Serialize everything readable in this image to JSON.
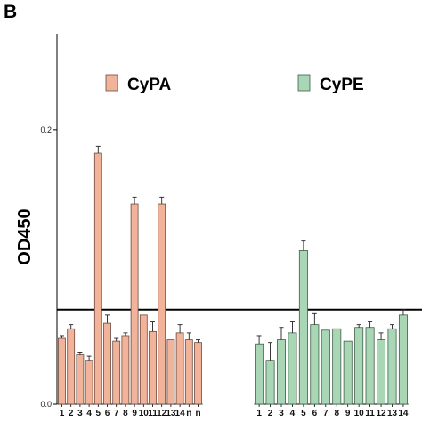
{
  "panel_letter": "B",
  "chart_data": {
    "type": "bar",
    "ylabel": "OD450",
    "ylim": [
      0,
      0.27
    ],
    "yticks": [
      0.0,
      0.2
    ],
    "ytick_labels": [
      "0.0",
      "0.2"
    ],
    "reference_line": 0.069,
    "legend_position": "top",
    "series": [
      {
        "name": "CyPA",
        "color": "#f2b39b",
        "stroke": "#6b4a3f",
        "categories": [
          "1",
          "2",
          "3",
          "4",
          "5",
          "6",
          "7",
          "8",
          "9",
          "10",
          "11",
          "12",
          "13",
          "14",
          "n",
          "n"
        ],
        "values": [
          0.048,
          0.055,
          0.036,
          0.032,
          0.183,
          0.059,
          0.046,
          0.05,
          0.146,
          0.065,
          0.053,
          0.146,
          0.047,
          0.052,
          0.047,
          0.045
        ],
        "errors": [
          0.002,
          0.003,
          0.002,
          0.003,
          0.005,
          0.006,
          0.002,
          0.002,
          0.005,
          0.0,
          0.007,
          0.005,
          0.0,
          0.006,
          0.005,
          0.002
        ]
      },
      {
        "name": "CyPE",
        "color": "#a9d7b5",
        "stroke": "#3f5f48",
        "categories": [
          "1",
          "2",
          "3",
          "4",
          "5",
          "6",
          "7",
          "8",
          "9",
          "10",
          "11",
          "12",
          "13",
          "14"
        ],
        "values": [
          0.044,
          0.032,
          0.047,
          0.052,
          0.112,
          0.058,
          0.054,
          0.055,
          0.046,
          0.056,
          0.056,
          0.047,
          0.055,
          0.065
        ],
        "errors": [
          0.006,
          0.013,
          0.009,
          0.008,
          0.007,
          0.008,
          0.0,
          0.0,
          0.0,
          0.002,
          0.004,
          0.005,
          0.003,
          0.004
        ]
      }
    ]
  }
}
